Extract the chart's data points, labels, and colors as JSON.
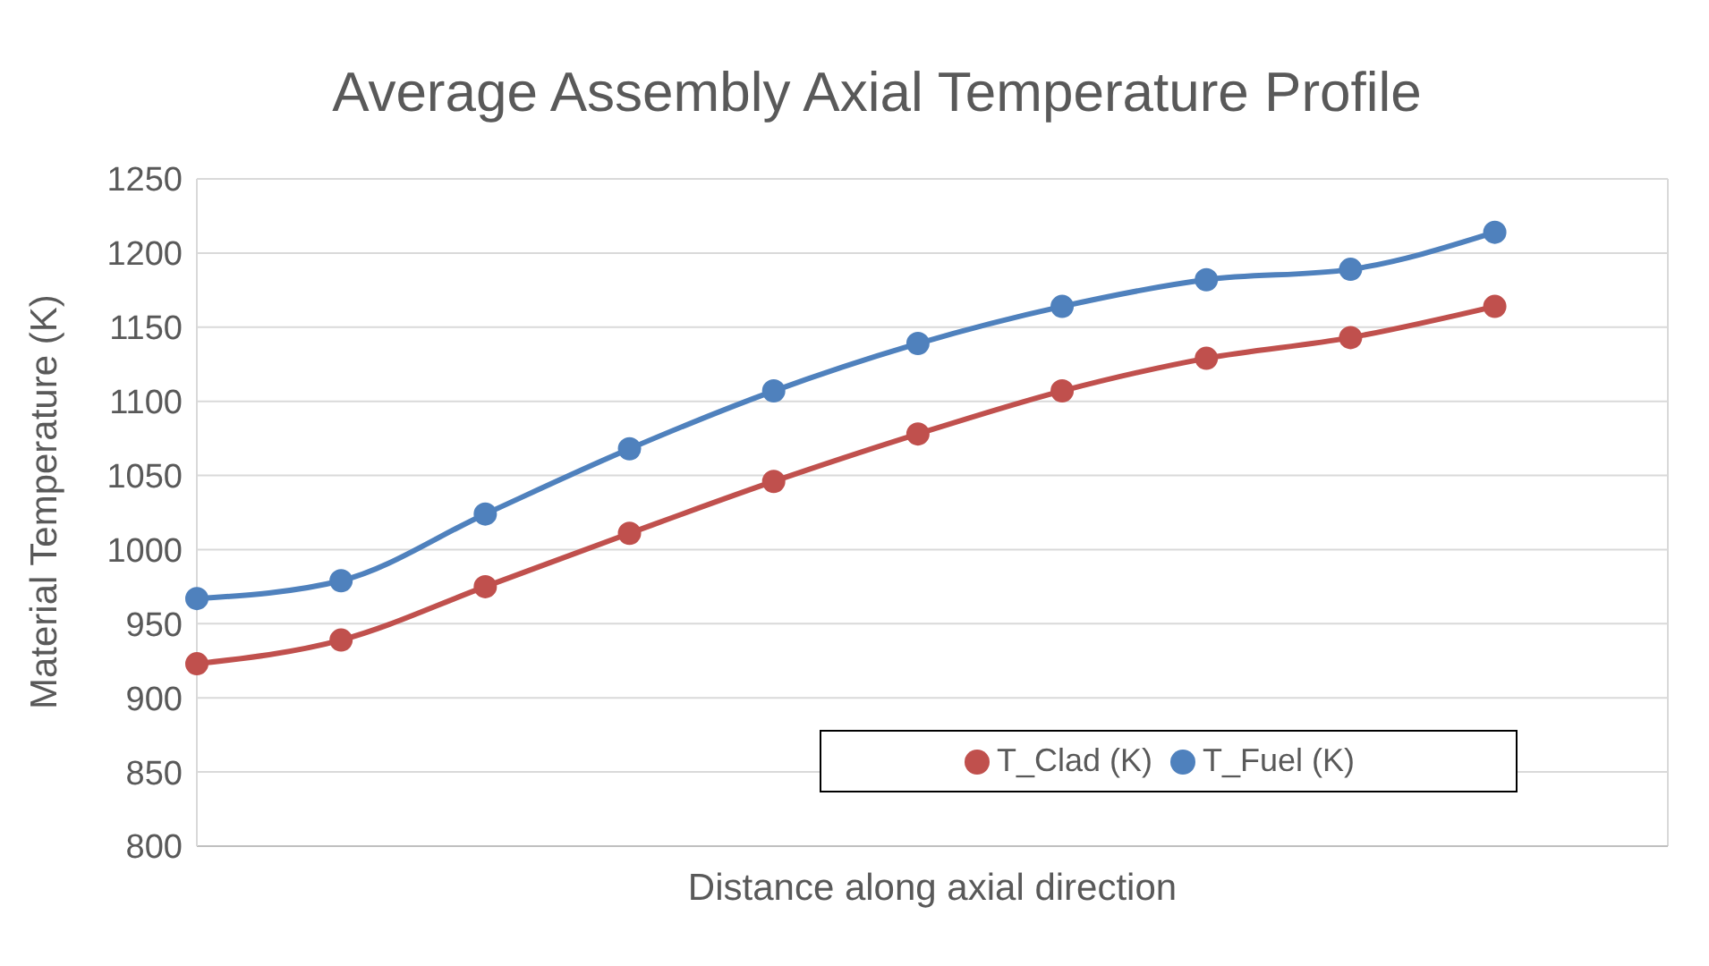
{
  "chart_data": {
    "type": "line",
    "title": "Average Assembly Axial Temperature Profile",
    "xlabel": "Distance along axial direction",
    "ylabel": "Material Temperature (K)",
    "categories": [
      null,
      null,
      null,
      null,
      null,
      null,
      null,
      null,
      null,
      null
    ],
    "series": [
      {
        "name": "T_Fuel (K)",
        "color": "#4f81bd",
        "values": [
          967,
          979,
          1024,
          1068,
          1107,
          1139,
          1164,
          1182,
          1189,
          1214
        ]
      },
      {
        "name": "T_Clad (K)",
        "color": "#c0504d",
        "values": [
          923,
          939,
          975,
          1011,
          1046,
          1078,
          1107,
          1129,
          1143,
          1164
        ]
      }
    ],
    "ylim": [
      800,
      1250
    ],
    "yticks": [
      800,
      850,
      900,
      950,
      1000,
      1050,
      1100,
      1150,
      1200,
      1250
    ],
    "grid": true,
    "legend": "right",
    "marker": "circle",
    "line_style": "solid"
  }
}
